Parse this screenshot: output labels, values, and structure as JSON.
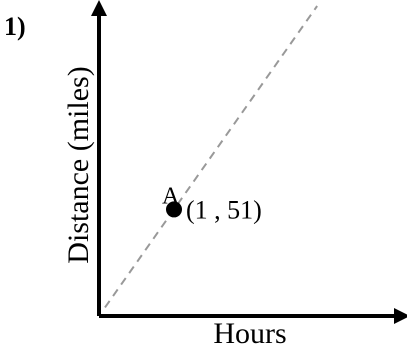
{
  "problem": {
    "number": "1)"
  },
  "chart_data": {
    "type": "scatter",
    "xlabel": "Hours",
    "ylabel": "Distance (miles)",
    "series": [
      {
        "points": [
          {
            "label": "A",
            "x": 1,
            "y": 51,
            "annotation": "(1 , 51)"
          }
        ]
      }
    ],
    "trend_line": {
      "style": "dashed",
      "passes_through": [
        [
          0,
          0
        ],
        [
          1,
          51
        ]
      ],
      "color": "#999999"
    },
    "axis_color": "#000000",
    "point_color": "#000000",
    "grid": false,
    "tick_labels": false
  }
}
